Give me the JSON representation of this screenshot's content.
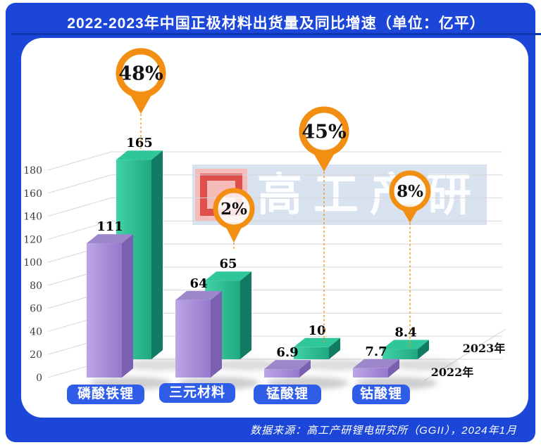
{
  "title": "2022-2023年中国正极材料出货量及同比增速（单位：亿平）",
  "source": "数据来源：高工产研锂电研究所（GGII），2024年1月",
  "watermark": {
    "text": "高工产研"
  },
  "colors": {
    "card_blue": "#1b46d8",
    "button_blue": "#2f5de8",
    "pin_orange": "#F28E12",
    "grid": "#d8d8d8",
    "bar_2022_front_light": "#BCA6E6",
    "bar_2022_front_dark": "#9678CC",
    "bar_2022_side": "#7B5FB0",
    "bar_2022_top": "#9D87CB",
    "bar_2023_front_light": "#41D3A7",
    "bar_2023_front_dark": "#1FA87F",
    "bar_2023_side": "#117A62",
    "bar_2023_top": "#2FC69A"
  },
  "chart_data": {
    "type": "bar",
    "title": "2022-2023年中国正极材料出货量及同比增速",
    "unit": "亿平",
    "categories": [
      "磷酸铁锂",
      "三元材料",
      "锰酸锂",
      "钴酸锂"
    ],
    "series": [
      {
        "name": "2022年",
        "values": [
          111,
          64,
          6.9,
          7.7
        ]
      },
      {
        "name": "2023年",
        "values": [
          165,
          65,
          10,
          8.4
        ]
      }
    ],
    "growth_yoy": [
      "48%",
      "2%",
      "45%",
      "8%"
    ],
    "yticks": [
      0,
      20,
      40,
      60,
      80,
      100,
      120,
      140,
      160,
      180
    ],
    "ylim": [
      0,
      180
    ],
    "grid": true,
    "style": "3d-bars",
    "legend_position": "right-floor"
  }
}
